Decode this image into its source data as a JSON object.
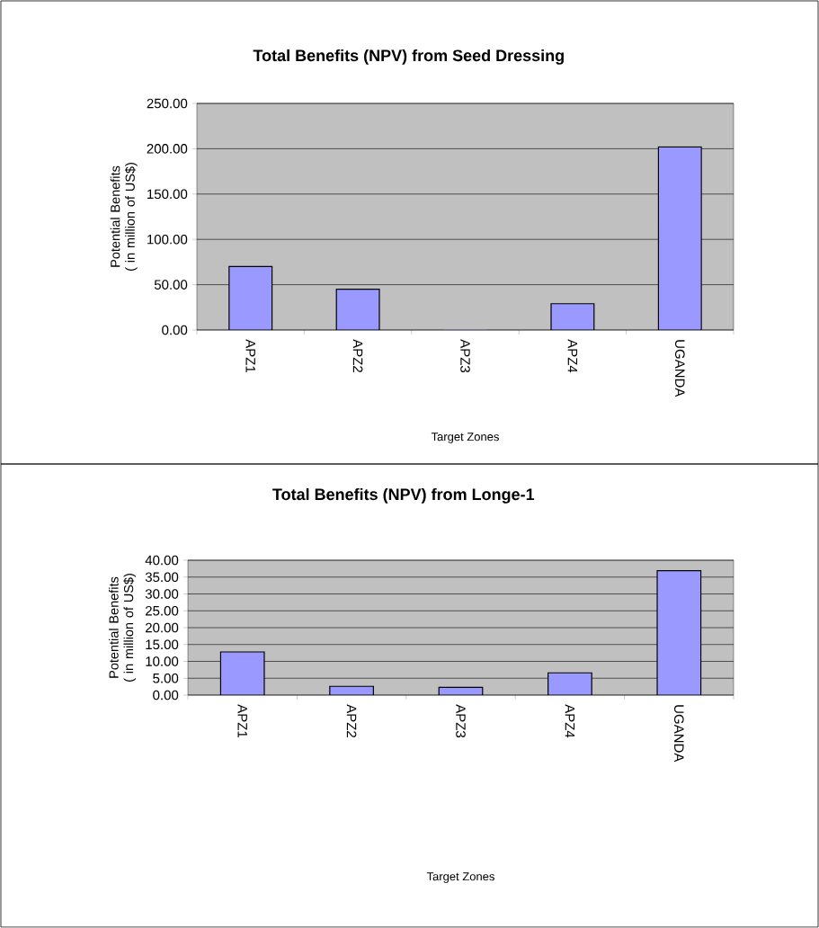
{
  "chart_data": [
    {
      "type": "bar",
      "title": "Total Benefits (NPV) from Seed Dressing",
      "xlabel": "Target Zones",
      "ylabel": "Potential Benefits ( in million of US$)",
      "categories": [
        "APZ1",
        "APZ2",
        "APZ3",
        "APZ4",
        "UGANDA"
      ],
      "values": [
        70,
        45,
        0,
        29,
        202
      ],
      "color": "#9999ff",
      "ylim": [
        0,
        250
      ],
      "yticks": [
        {
          "value": 0,
          "label": "0.00"
        },
        {
          "value": 50,
          "label": "50.00"
        },
        {
          "value": 100,
          "label": "100.00"
        },
        {
          "value": 150,
          "label": "150.00"
        },
        {
          "value": 200,
          "label": "200.00"
        },
        {
          "value": 250,
          "label": "250.00"
        }
      ],
      "grid": "y"
    },
    {
      "type": "bar",
      "title": "Total Benefits (NPV) from Longe-1",
      "xlabel": "Target Zones",
      "ylabel": "Potential Benefits ( in million of US$)",
      "categories": [
        "APZ1",
        "APZ2",
        "APZ3",
        "APZ4",
        "UGANDA"
      ],
      "values": [
        12.8,
        2.6,
        2.3,
        6.6,
        36.9
      ],
      "color": "#9999ff",
      "ylim": [
        0,
        40
      ],
      "yticks": [
        {
          "value": 0,
          "label": "0.00"
        },
        {
          "value": 5,
          "label": "5.00"
        },
        {
          "value": 10,
          "label": "10.00"
        },
        {
          "value": 15,
          "label": "15.00"
        },
        {
          "value": 20,
          "label": "20.00"
        },
        {
          "value": 25,
          "label": "25.00"
        },
        {
          "value": 30,
          "label": "30.00"
        },
        {
          "value": 35,
          "label": "35.00"
        },
        {
          "value": 40,
          "label": "40.00"
        }
      ],
      "grid": "y"
    }
  ]
}
